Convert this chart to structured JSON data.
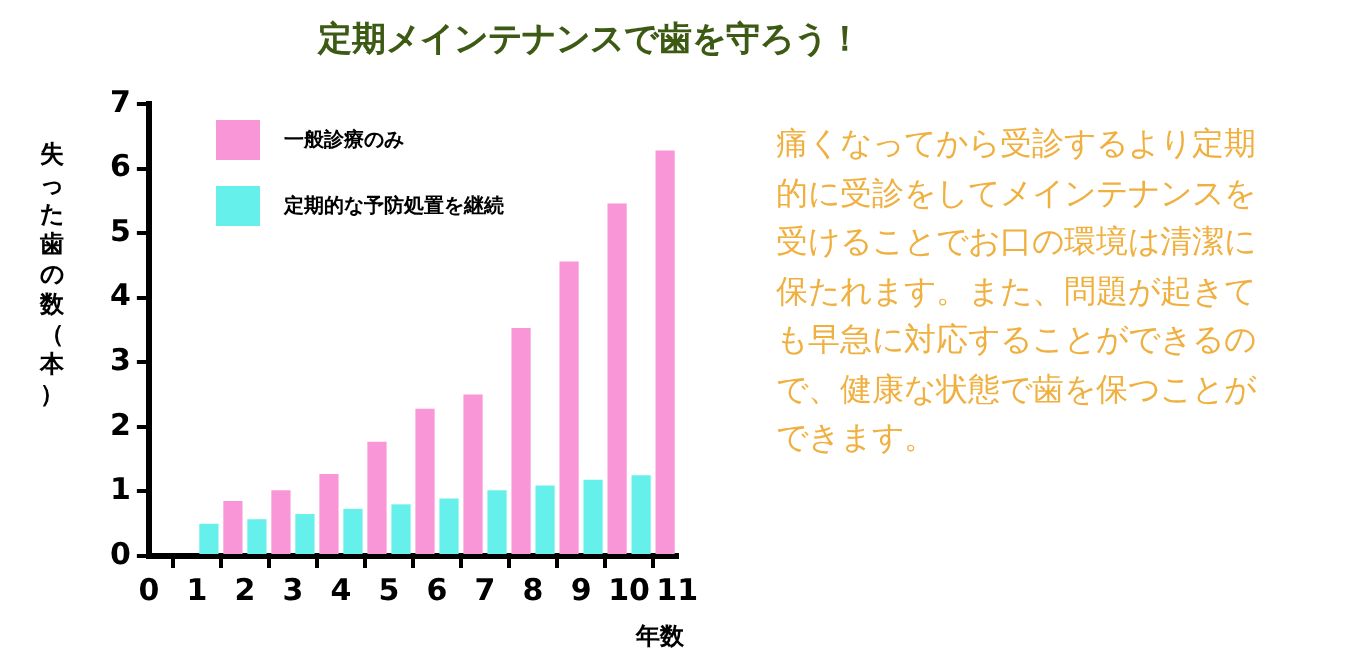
{
  "chart_data": {
    "type": "bar",
    "title": "定期メインテナンスで歯を守ろう！",
    "xlabel": "年数",
    "ylabel": "失った歯の数（本）",
    "x": [
      1.5,
      2.5,
      3.5,
      4.5,
      5.5,
      6.5,
      7.5,
      8.5,
      9.5,
      10.5
    ],
    "series": [
      {
        "name": "一般診療のみ",
        "color": "#f896d8",
        "values": [
          0.85,
          1.02,
          1.27,
          1.77,
          2.28,
          2.5,
          3.53,
          4.56,
          5.46,
          6.28
        ]
      },
      {
        "name": "定期的な予防処置を継続",
        "color": "#66f0ec",
        "values": [
          0.5,
          0.57,
          0.65,
          0.73,
          0.8,
          0.89,
          1.02,
          1.09,
          1.18,
          1.25
        ]
      }
    ],
    "xlim": [
      0,
      11
    ],
    "xticks": [
      0,
      1,
      2,
      3,
      4,
      5,
      6,
      7,
      8,
      9,
      10,
      11
    ],
    "ylim": [
      0,
      7
    ],
    "yticks": [
      0,
      1,
      2,
      3,
      4,
      5,
      6,
      7
    ],
    "grid": false,
    "legend": "top left",
    "annotations": [
      "痛くなってから受診するより定期的に受診をしてメインテナンスを受けることでお口の環境は清潔に保たれます。また、問題が起きても早急に対応することができるので、健康な状態で歯を保つことができます。"
    ]
  }
}
